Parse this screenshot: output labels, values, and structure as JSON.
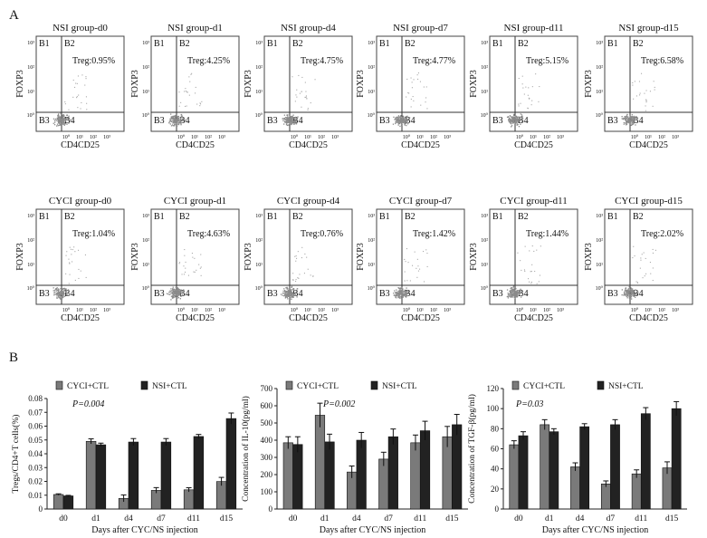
{
  "panel_labels": {
    "a": "A",
    "b": "B"
  },
  "flow_common": {
    "ylabel": "FOXP3",
    "xlabel": "CD4CD25",
    "ticks_y": [
      "10³",
      "10²",
      "10¹",
      "10⁰"
    ],
    "ticks_x": [
      "10⁰",
      "10¹",
      "10²",
      "10³"
    ],
    "quadrants": [
      "B1",
      "B2",
      "B3",
      "B4"
    ]
  },
  "flow_rows": [
    [
      {
        "title": "NSI group-d0",
        "treg": "Treg:0.95%"
      },
      {
        "title": "NSI group-d1",
        "treg": "Treg:4.25%"
      },
      {
        "title": "NSI group-d4",
        "treg": "Treg:4.75%"
      },
      {
        "title": "NSI group-d7",
        "treg": "Treg:4.77%"
      },
      {
        "title": "NSI group-d11",
        "treg": "Treg:5.15%"
      },
      {
        "title": "NSI group-d15",
        "treg": "Treg:6.58%"
      }
    ],
    [
      {
        "title": "CYCI group-d0",
        "treg": "Treg:1.04%"
      },
      {
        "title": "CYCI group-d1",
        "treg": "Treg:4.63%"
      },
      {
        "title": "CYCI group-d4",
        "treg": "Treg:0.76%"
      },
      {
        "title": "CYCI group-d7",
        "treg": "Treg:1.42%"
      },
      {
        "title": "CYCI group-d11",
        "treg": "Treg:1.44%"
      },
      {
        "title": "CYCI group-d15",
        "treg": "Treg:2.02%"
      }
    ]
  ],
  "chart_data": [
    {
      "type": "bar",
      "ylabel": "Tregs/CD4+T cells(%)",
      "xlabel": "Days after CYC/NS injection",
      "categories": [
        "d0",
        "d1",
        "d4",
        "d7",
        "d11",
        "d15"
      ],
      "ylim": [
        0,
        0.08
      ],
      "yticks": [
        0,
        0.01,
        0.02,
        0.03,
        0.04,
        0.05,
        0.06,
        0.07,
        0.08
      ],
      "ytick_labels": [
        "0",
        "0.01",
        "0.02",
        "0.03",
        "0.04",
        "0.05",
        "0.06",
        "0.07",
        "0.08"
      ],
      "pvalue": "P=0.004",
      "series": [
        {
          "name": "CYCI+CTL",
          "color": "#7a7a7a",
          "values": [
            0.0105,
            0.049,
            0.0077,
            0.0135,
            0.0139,
            0.0199
          ],
          "errors": [
            0.0005,
            0.0018,
            0.0025,
            0.002,
            0.0015,
            0.003
          ]
        },
        {
          "name": "NSI+CTL",
          "color": "#222222",
          "values": [
            0.0095,
            0.0465,
            0.0485,
            0.0485,
            0.0525,
            0.0655
          ],
          "errors": [
            0.0004,
            0.0012,
            0.0025,
            0.0025,
            0.0015,
            0.004
          ]
        }
      ]
    },
    {
      "type": "bar",
      "ylabel": "Concentration of IL-10(pg/ml)",
      "xlabel": "Days after CYC/NS injection",
      "categories": [
        "d0",
        "d1",
        "d4",
        "d7",
        "d11",
        "d15"
      ],
      "ylim": [
        0,
        700
      ],
      "yticks": [
        0,
        100,
        200,
        300,
        400,
        500,
        600,
        700
      ],
      "ytick_labels": [
        "0",
        "100",
        "200",
        "300",
        "400",
        "500",
        "600",
        "700"
      ],
      "pvalue": "P=0.002",
      "series": [
        {
          "name": "CYCI+CTL",
          "color": "#7a7a7a",
          "values": [
            385,
            545,
            215,
            290,
            385,
            420
          ],
          "errors": [
            35,
            70,
            35,
            40,
            45,
            60
          ]
        },
        {
          "name": "NSI+CTL",
          "color": "#222222",
          "values": [
            375,
            390,
            400,
            420,
            455,
            490
          ],
          "errors": [
            45,
            45,
            45,
            45,
            55,
            60
          ]
        }
      ]
    },
    {
      "type": "bar",
      "ylabel": "Concentration of TGF-β(pg/ml)",
      "xlabel": "Days after CYC/NS injection",
      "categories": [
        "d0",
        "d1",
        "d4",
        "d7",
        "d11",
        "d15"
      ],
      "ylim": [
        0,
        120
      ],
      "yticks": [
        0,
        20,
        40,
        60,
        80,
        100,
        120
      ],
      "ytick_labels": [
        "0",
        "20",
        "40",
        "60",
        "80",
        "100",
        "120"
      ],
      "pvalue": "P=0.03",
      "series": [
        {
          "name": "CYCI+CTL",
          "color": "#7a7a7a",
          "values": [
            64,
            84,
            42,
            25,
            35,
            41
          ],
          "errors": [
            4,
            5,
            4,
            3,
            4,
            6
          ]
        },
        {
          "name": "NSI+CTL",
          "color": "#222222",
          "values": [
            73,
            77,
            82,
            84,
            95,
            100
          ],
          "errors": [
            4,
            3,
            3,
            5,
            6,
            7
          ]
        }
      ]
    }
  ]
}
